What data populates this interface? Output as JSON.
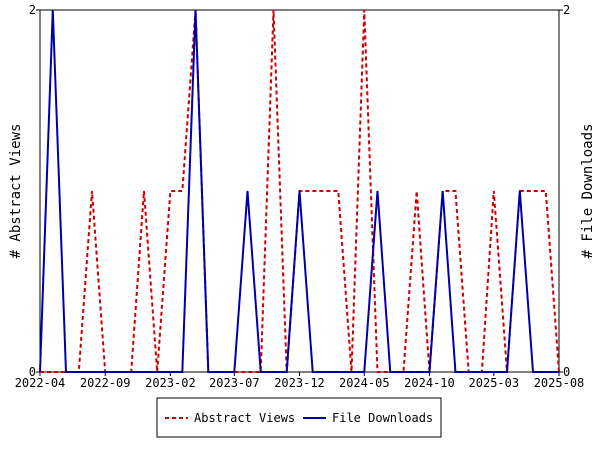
{
  "chart_data": {
    "type": "line",
    "ylabel_left": "# Abstract Views",
    "ylabel_right": "# File Downloads",
    "x_tick_labels": [
      "2022-04",
      "2022-09",
      "2023-02",
      "2023-07",
      "2023-12",
      "2024-05",
      "2024-10",
      "2025-03",
      "2025-08"
    ],
    "y_ticks_left": [
      "0",
      "2"
    ],
    "y_ticks_right": [
      "0",
      "2"
    ],
    "ylim": [
      0,
      2
    ],
    "x_range": [
      "2022-04",
      "2025-08"
    ],
    "legend_position": "bottom-center",
    "series": [
      {
        "name": "Abstract Views",
        "color": "#cc0000",
        "style": "dashed",
        "axis": "left",
        "points": [
          [
            "2022-04-01",
            0
          ],
          [
            "2022-05-01",
            0
          ],
          [
            "2022-06-01",
            0
          ],
          [
            "2022-07-01",
            0
          ],
          [
            "2022-08-01",
            1
          ],
          [
            "2022-09-01",
            0
          ],
          [
            "2022-10-01",
            0
          ],
          [
            "2022-11-01",
            0
          ],
          [
            "2022-12-01",
            1
          ],
          [
            "2023-01-01",
            0
          ],
          [
            "2023-02-01",
            1
          ],
          [
            "2023-03-01",
            1
          ],
          [
            "2023-04-01",
            2
          ],
          [
            "2023-05-01",
            0
          ],
          [
            "2023-06-01",
            0
          ],
          [
            "2023-07-01",
            0
          ],
          [
            "2023-08-01",
            0
          ],
          [
            "2023-09-01",
            0
          ],
          [
            "2023-10-01",
            2
          ],
          [
            "2023-11-01",
            0
          ],
          [
            "2023-12-01",
            1
          ],
          [
            "2024-01-01",
            1
          ],
          [
            "2024-02-01",
            1
          ],
          [
            "2024-03-01",
            1
          ],
          [
            "2024-04-01",
            0
          ],
          [
            "2024-05-01",
            2
          ],
          [
            "2024-06-01",
            0
          ],
          [
            "2024-07-01",
            0
          ],
          [
            "2024-08-01",
            0
          ],
          [
            "2024-09-01",
            1
          ],
          [
            "2024-10-01",
            0
          ],
          [
            "2024-11-01",
            1
          ],
          [
            "2024-12-01",
            1
          ],
          [
            "2025-01-01",
            0
          ],
          [
            "2025-02-01",
            0
          ],
          [
            "2025-03-01",
            1
          ],
          [
            "2025-04-01",
            0
          ],
          [
            "2025-05-01",
            1
          ],
          [
            "2025-06-01",
            1
          ],
          [
            "2025-07-01",
            1
          ],
          [
            "2025-08-01",
            0
          ]
        ]
      },
      {
        "name": "File Downloads",
        "color": "#0000aa",
        "style": "solid",
        "axis": "right",
        "points": [
          [
            "2022-04-01",
            0
          ],
          [
            "2022-05-01",
            2
          ],
          [
            "2022-06-01",
            0
          ],
          [
            "2022-07-01",
            0
          ],
          [
            "2022-08-01",
            0
          ],
          [
            "2022-09-01",
            0
          ],
          [
            "2022-10-01",
            0
          ],
          [
            "2022-11-01",
            0
          ],
          [
            "2022-12-01",
            0
          ],
          [
            "2023-01-01",
            0
          ],
          [
            "2023-02-01",
            0
          ],
          [
            "2023-03-01",
            0
          ],
          [
            "2023-04-01",
            2
          ],
          [
            "2023-05-01",
            0
          ],
          [
            "2023-06-01",
            0
          ],
          [
            "2023-07-01",
            0
          ],
          [
            "2023-08-01",
            1
          ],
          [
            "2023-09-01",
            0
          ],
          [
            "2023-10-01",
            0
          ],
          [
            "2023-11-01",
            0
          ],
          [
            "2023-12-01",
            1
          ],
          [
            "2024-01-01",
            0
          ],
          [
            "2024-02-01",
            0
          ],
          [
            "2024-03-01",
            0
          ],
          [
            "2024-04-01",
            0
          ],
          [
            "2024-05-01",
            0
          ],
          [
            "2024-06-01",
            1
          ],
          [
            "2024-07-01",
            0
          ],
          [
            "2024-08-01",
            0
          ],
          [
            "2024-09-01",
            0
          ],
          [
            "2024-10-01",
            0
          ],
          [
            "2024-11-01",
            1
          ],
          [
            "2024-12-01",
            0
          ],
          [
            "2025-01-01",
            0
          ],
          [
            "2025-02-01",
            0
          ],
          [
            "2025-03-01",
            0
          ],
          [
            "2025-04-01",
            0
          ],
          [
            "2025-05-01",
            1
          ],
          [
            "2025-06-01",
            0
          ],
          [
            "2025-07-01",
            0
          ],
          [
            "2025-08-01",
            0
          ]
        ]
      }
    ]
  }
}
